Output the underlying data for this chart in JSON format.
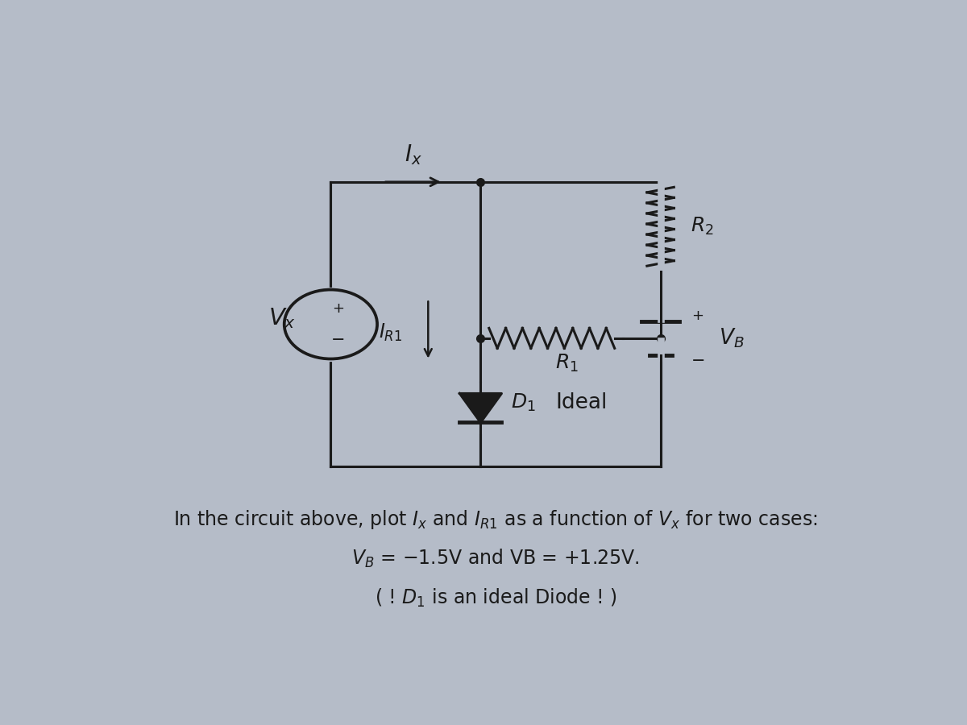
{
  "bg_color": "#b5bcc8",
  "lw": 2.2,
  "color": "#1a1a1a",
  "label_fontsize": 18,
  "text_fontsize": 17,
  "line1": "In the circuit above, plot Ix and IR1 as a function of Vx for two cases:",
  "line2": "VB = −1.5V and VB = +1.25V.",
  "line3": "( ! D₁ is an ideal Diode ! )"
}
